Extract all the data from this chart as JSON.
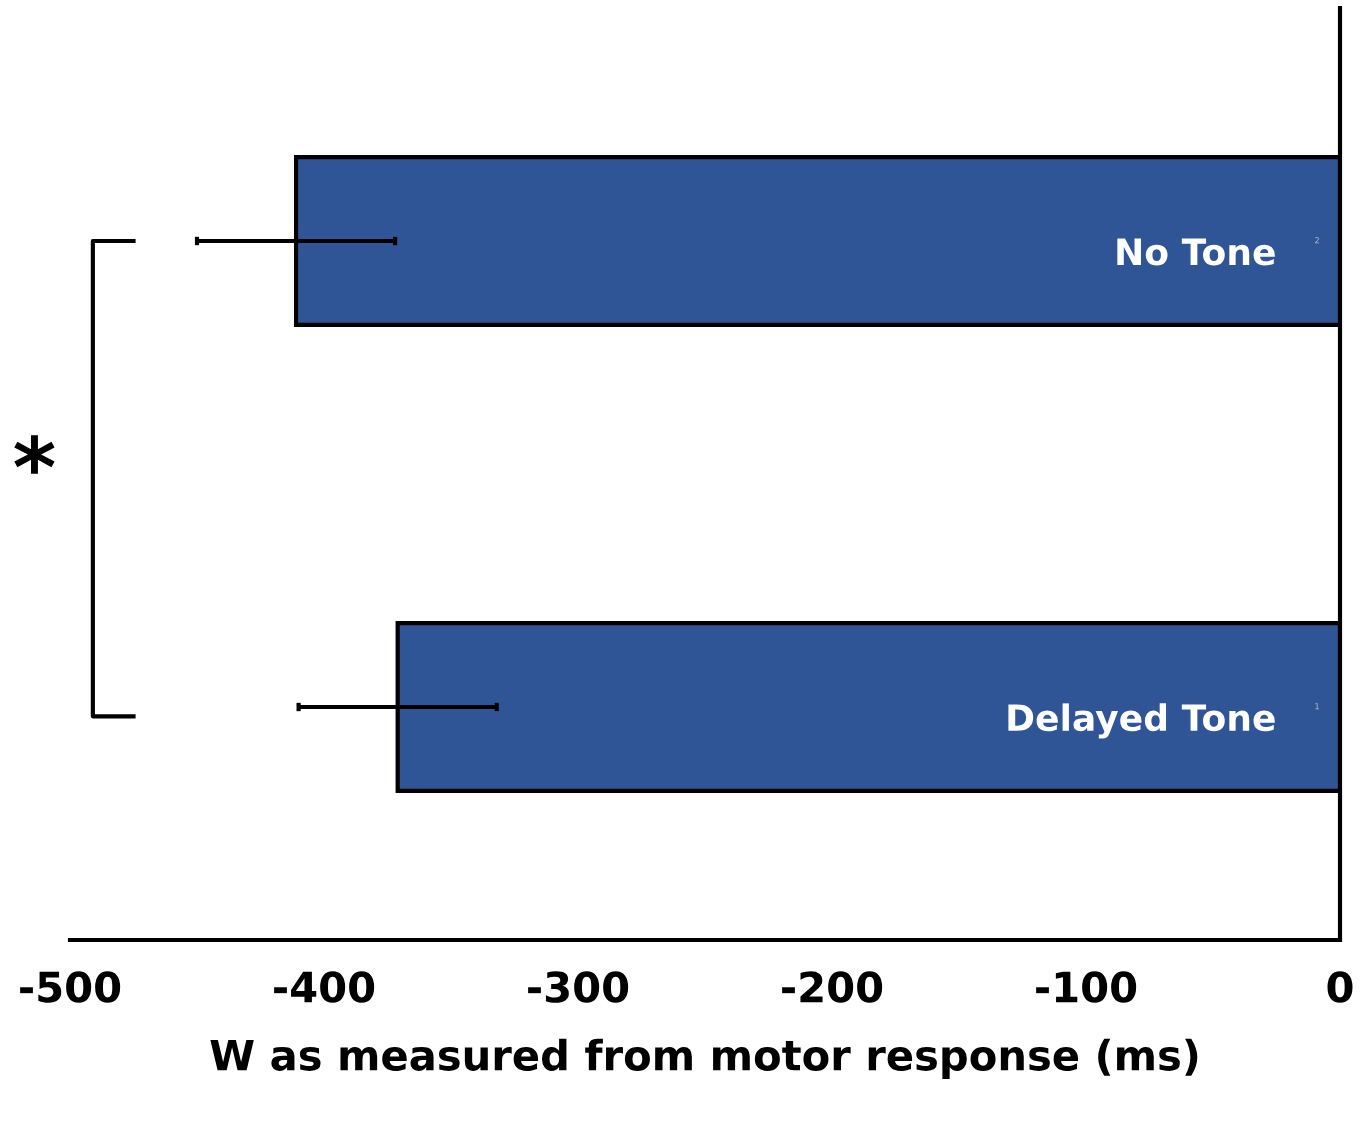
{
  "chart_data": {
    "type": "bar",
    "orientation": "horizontal",
    "xlabel": "W as measured from motor response (ms)",
    "categories": [
      "No Tone",
      "Delayed Tone"
    ],
    "values": [
      -411,
      -371
    ],
    "errors": [
      39,
      39
    ],
    "color": "#2f5597",
    "xlim": [
      -500,
      0
    ],
    "xticks": [
      -500,
      -400,
      -300,
      -200,
      -100,
      0
    ],
    "grid": false,
    "annotations": [
      "*",
      {
        "text": "2",
        "x": 0,
        "y": "No Tone"
      },
      {
        "text": "1",
        "x": 0,
        "y": "Delayed Tone"
      }
    ]
  }
}
